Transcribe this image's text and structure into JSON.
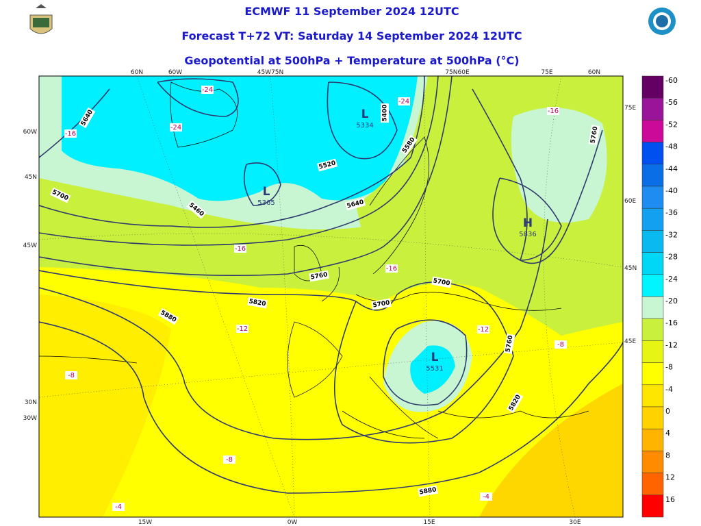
{
  "header": {
    "lines": [
      "ECMWF 11 September 2024 12UTC",
      "Forecast T+72 VT: Saturday 14 September 2024 12UTC",
      "Geopotential at 500hPa + Temperature at 500hPa (°C)"
    ]
  },
  "map": {
    "top_labels": [
      "60N",
      "60W",
      "45W75N",
      "75N60E",
      "75E",
      "60N"
    ],
    "left_labels": [
      "60W",
      "45N",
      "45W",
      "30N",
      "30W"
    ],
    "right_labels": [
      "75E",
      "60E",
      "45N",
      "45E"
    ],
    "bottom_labels": [
      "15W",
      "0W",
      "15E",
      "30E"
    ],
    "contour_labels": [
      "5640",
      "5520",
      "5400",
      "5580",
      "5640",
      "5700",
      "5460",
      "5760",
      "5820",
      "5880",
      "5700",
      "5700",
      "5760",
      "5820",
      "5880",
      "5760"
    ],
    "temperature_labels": [
      "-16",
      "-24",
      "-24",
      "-24",
      "-16",
      "-16",
      "-16",
      "-12",
      "-12",
      "-8",
      "-8",
      "-8",
      "-4",
      "-4"
    ],
    "centers": [
      {
        "letter": "L",
        "value": "5334"
      },
      {
        "letter": "L",
        "value": "5365"
      },
      {
        "letter": "H",
        "value": "5836"
      },
      {
        "letter": "L",
        "value": "5531"
      }
    ]
  },
  "colorbar": [
    {
      "label": "-60",
      "color": "#640064"
    },
    {
      "label": "-56",
      "color": "#9a149a"
    },
    {
      "label": "-52",
      "color": "#cc0a9a"
    },
    {
      "label": "-48",
      "color": "#0050f0"
    },
    {
      "label": "-44",
      "color": "#0a6ee6"
    },
    {
      "label": "-40",
      "color": "#1e8cf0"
    },
    {
      "label": "-36",
      "color": "#14a0f0"
    },
    {
      "label": "-32",
      "color": "#0ab9f0"
    },
    {
      "label": "-28",
      "color": "#00d6f5"
    },
    {
      "label": "-24",
      "color": "#00f5ff"
    },
    {
      "label": "-20",
      "color": "#c8f5d2"
    },
    {
      "label": "-16",
      "color": "#c8f03c"
    },
    {
      "label": "-12",
      "color": "#e6f514"
    },
    {
      "label": "-8",
      "color": "#ffff00"
    },
    {
      "label": "-4",
      "color": "#ffe600"
    },
    {
      "label": "0",
      "color": "#ffd200"
    },
    {
      "label": "4",
      "color": "#ffb400"
    },
    {
      "label": "8",
      "color": "#ff8c00"
    },
    {
      "label": "12",
      "color": "#ff6400"
    },
    {
      "label": "16",
      "color": "#ff0000"
    }
  ]
}
